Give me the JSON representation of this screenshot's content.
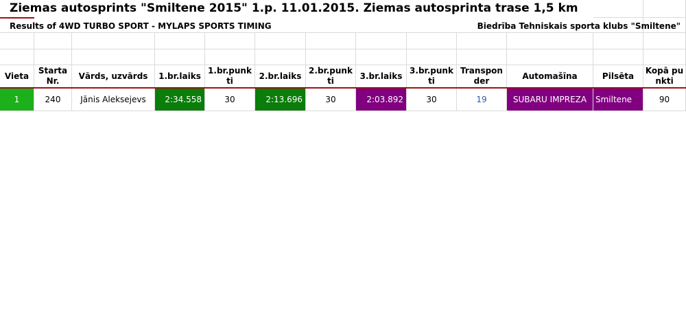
{
  "header": {
    "title": "Ziemas autosprints \"Smiltene 2015\" 1.p. 11.01.2015. Ziemas autosprinta trase 1,5 km",
    "subtitle_left": "Results of 4WD TURBO SPORT - MYLAPS SPORTS TIMING",
    "subtitle_right": "Biedrība Tehniskais sporta klubs \"Smiltene\""
  },
  "table": {
    "columns": [
      "Vieta",
      "Starta Nr.",
      "Vārds, uzvārds",
      "1.br.laiks",
      "1.br.punkti",
      "2.br.laiks",
      "2.br.punkti",
      "3.br.laiks",
      "3.br.punkti",
      "Transponder",
      "Automašīna",
      "Pilsēta",
      "Kopā punkti"
    ],
    "rows": [
      [
        "1",
        "240",
        "Jānis Aleksejevs",
        "2:34.558",
        "30",
        "2:13.696",
        "30",
        "2:03.892",
        "30",
        "19",
        "SUBARU IMPREZA",
        "Smiltene",
        "90"
      ]
    ]
  }
}
